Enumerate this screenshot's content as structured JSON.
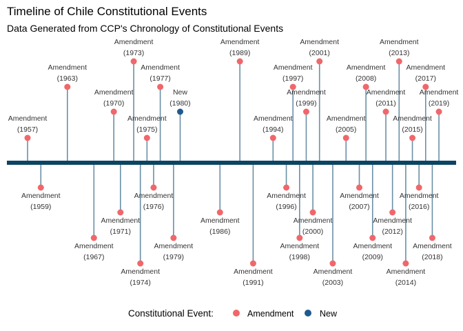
{
  "chart_data": {
    "type": "timeline",
    "title": "Timeline of Chile Constitutional Events",
    "subtitle": "Data Generated from CCP's Chronology of Constitutional Events",
    "legend": {
      "title": "Constitutional Event:",
      "position": "bottom",
      "entries": [
        {
          "name": "Amendment",
          "color": "#f0676b"
        },
        {
          "name": "New",
          "color": "#1f5a8e"
        }
      ]
    },
    "colors": {
      "axis": "#0c4464",
      "stem": "#6a8fa6"
    },
    "events": [
      {
        "year": 1957,
        "type": "Amendment",
        "label": "Amendment",
        "year_label": "(1957)",
        "side": "up",
        "level": 1
      },
      {
        "year": 1959,
        "type": "Amendment",
        "label": "Amendment",
        "year_label": "(1959)",
        "side": "down",
        "level": 1
      },
      {
        "year": 1963,
        "type": "Amendment",
        "label": "Amendment",
        "year_label": "(1963)",
        "side": "up",
        "level": 3
      },
      {
        "year": 1967,
        "type": "Amendment",
        "label": "Amendment",
        "year_label": "(1967)",
        "side": "down",
        "level": 3
      },
      {
        "year": 1970,
        "type": "Amendment",
        "label": "Amendment",
        "year_label": "(1970)",
        "side": "up",
        "level": 2
      },
      {
        "year": 1971,
        "type": "Amendment",
        "label": "Amendment",
        "year_label": "(1971)",
        "side": "down",
        "level": 2
      },
      {
        "year": 1973,
        "type": "Amendment",
        "label": "Amendment",
        "year_label": "(1973)",
        "side": "up",
        "level": 4
      },
      {
        "year": 1974,
        "type": "Amendment",
        "label": "Amendment",
        "year_label": "(1974)",
        "side": "down",
        "level": 4
      },
      {
        "year": 1975,
        "type": "Amendment",
        "label": "Amendment",
        "year_label": "(1975)",
        "side": "up",
        "level": 1
      },
      {
        "year": 1976,
        "type": "Amendment",
        "label": "Amendment",
        "year_label": "(1976)",
        "side": "down",
        "level": 1
      },
      {
        "year": 1977,
        "type": "Amendment",
        "label": "Amendment",
        "year_label": "(1977)",
        "side": "up",
        "level": 3
      },
      {
        "year": 1979,
        "type": "Amendment",
        "label": "Amendment",
        "year_label": "(1979)",
        "side": "down",
        "level": 3
      },
      {
        "year": 1980,
        "type": "New",
        "label": "New",
        "year_label": "(1980)",
        "side": "up",
        "level": 2
      },
      {
        "year": 1986,
        "type": "Amendment",
        "label": "Amendment",
        "year_label": "(1986)",
        "side": "down",
        "level": 2
      },
      {
        "year": 1989,
        "type": "Amendment",
        "label": "Amendment",
        "year_label": "(1989)",
        "side": "up",
        "level": 4
      },
      {
        "year": 1991,
        "type": "Amendment",
        "label": "Amendment",
        "year_label": "(1991)",
        "side": "down",
        "level": 4
      },
      {
        "year": 1994,
        "type": "Amendment",
        "label": "Amendment",
        "year_label": "(1994)",
        "side": "up",
        "level": 1
      },
      {
        "year": 1996,
        "type": "Amendment",
        "label": "Amendment",
        "year_label": "(1996)",
        "side": "down",
        "level": 1
      },
      {
        "year": 1997,
        "type": "Amendment",
        "label": "Amendment",
        "year_label": "(1997)",
        "side": "up",
        "level": 3
      },
      {
        "year": 1998,
        "type": "Amendment",
        "label": "Amendment",
        "year_label": "(1998)",
        "side": "down",
        "level": 3
      },
      {
        "year": 1999,
        "type": "Amendment",
        "label": "Amendment",
        "year_label": "(1999)",
        "side": "up",
        "level": 2
      },
      {
        "year": 2000,
        "type": "Amendment",
        "label": "Amendment",
        "year_label": "(2000)",
        "side": "down",
        "level": 2
      },
      {
        "year": 2001,
        "type": "Amendment",
        "label": "Amendment",
        "year_label": "(2001)",
        "side": "up",
        "level": 4
      },
      {
        "year": 2003,
        "type": "Amendment",
        "label": "Amendment",
        "year_label": "(2003)",
        "side": "down",
        "level": 4
      },
      {
        "year": 2005,
        "type": "Amendment",
        "label": "Amendment",
        "year_label": "(2005)",
        "side": "up",
        "level": 1
      },
      {
        "year": 2007,
        "type": "Amendment",
        "label": "Amendment",
        "year_label": "(2007)",
        "side": "down",
        "level": 1
      },
      {
        "year": 2008,
        "type": "Amendment",
        "label": "Amendment",
        "year_label": "(2008)",
        "side": "up",
        "level": 3
      },
      {
        "year": 2009,
        "type": "Amendment",
        "label": "Amendment",
        "year_label": "(2009)",
        "side": "down",
        "level": 3
      },
      {
        "year": 2011,
        "type": "Amendment",
        "label": "Amendment",
        "year_label": "(2011)",
        "side": "up",
        "level": 2
      },
      {
        "year": 2012,
        "type": "Amendment",
        "label": "Amendment",
        "year_label": "(2012)",
        "side": "down",
        "level": 2
      },
      {
        "year": 2013,
        "type": "Amendment",
        "label": "Amendment",
        "year_label": "(2013)",
        "side": "up",
        "level": 4
      },
      {
        "year": 2014,
        "type": "Amendment",
        "label": "Amendment",
        "year_label": "(2014)",
        "side": "down",
        "level": 4
      },
      {
        "year": 2015,
        "type": "Amendment",
        "label": "Amendment",
        "year_label": "(2015)",
        "side": "up",
        "level": 1
      },
      {
        "year": 2016,
        "type": "Amendment",
        "label": "Amendment",
        "year_label": "(2016)",
        "side": "down",
        "level": 1
      },
      {
        "year": 2017,
        "type": "Amendment",
        "label": "Amendment",
        "year_label": "(2017)",
        "side": "up",
        "level": 3
      },
      {
        "year": 2018,
        "type": "Amendment",
        "label": "Amendment",
        "year_label": "(2018)",
        "side": "down",
        "level": 3
      },
      {
        "year": 2019,
        "type": "Amendment",
        "label": "Amendment",
        "year_label": "(2019)",
        "side": "up",
        "level": 2
      }
    ]
  }
}
